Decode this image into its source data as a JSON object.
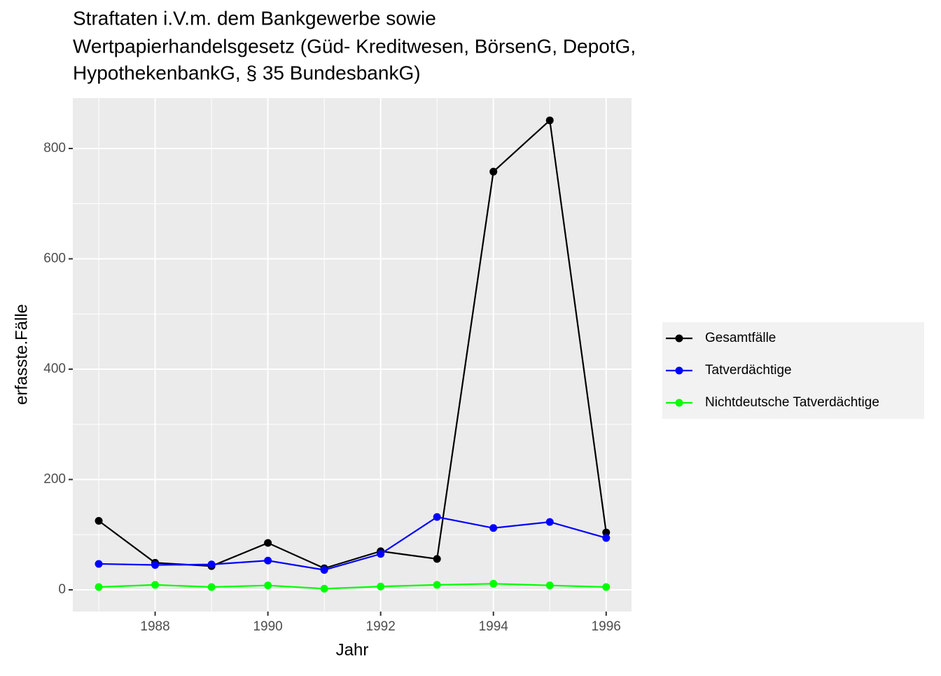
{
  "chart_data": {
    "type": "line",
    "title": [
      "Straftaten i.V.m. dem Bankgewerbe sowie",
      "Wertpapierhandelsgesetz (Güd- Kreditwesen, BörsenG, DepotG,",
      "HypothekenbankG, § 35 BundesbankG)"
    ],
    "x_label": "Jahr",
    "y_label": "erfasste.Fälle",
    "x": [
      1987,
      1988,
      1989,
      1990,
      1991,
      1992,
      1993,
      1994,
      1995,
      1996
    ],
    "series": [
      {
        "name": "Gesamtfälle",
        "color": "#000000",
        "values": [
          125,
          49,
          43,
          85,
          39,
          70,
          56,
          758,
          851,
          104
        ]
      },
      {
        "name": "Tatverdächtige",
        "color": "#0000ff",
        "values": [
          47,
          45,
          46,
          53,
          36,
          65,
          132,
          112,
          123,
          94
        ]
      },
      {
        "name": "Nichtdeutsche Tatverdächtige",
        "color": "#00ff00",
        "values": [
          5,
          9,
          5,
          8,
          2,
          6,
          9,
          11,
          8,
          5
        ]
      }
    ],
    "xlim": [
      1986.54,
      1996.45
    ],
    "xticks": [
      1988,
      1990,
      1992,
      1994,
      1996
    ],
    "ylim": [
      -39.4,
      891.4
    ],
    "yticks": [
      0,
      200,
      400,
      600,
      800
    ],
    "grid": true,
    "legend": "right"
  }
}
